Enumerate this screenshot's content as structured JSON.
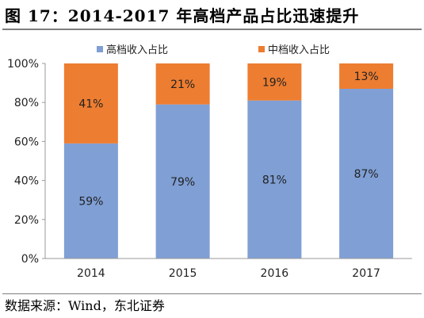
{
  "title": "图 17：2014-2017 年高档产品占比迅速提升",
  "source": "数据来源：Wind，东北证券",
  "chart_data": {
    "type": "bar",
    "stacked": true,
    "categories": [
      "2014",
      "2015",
      "2016",
      "2017"
    ],
    "series": [
      {
        "name": "高档收入占比",
        "values": [
          59,
          79,
          81,
          87
        ],
        "labels": [
          "59%",
          "79%",
          "81%",
          "87%"
        ],
        "color": "#7f9fd5"
      },
      {
        "name": "中档收入占比",
        "values": [
          41,
          21,
          19,
          13
        ],
        "labels": [
          "41%",
          "21%",
          "19%",
          "13%"
        ],
        "color": "#ed7d31"
      }
    ],
    "ylim": [
      0,
      100
    ],
    "yticks": [
      "0%",
      "20%",
      "40%",
      "60%",
      "80%",
      "100%"
    ],
    "xlabel": "",
    "ylabel": "",
    "grid": false,
    "legend_position": "top"
  }
}
